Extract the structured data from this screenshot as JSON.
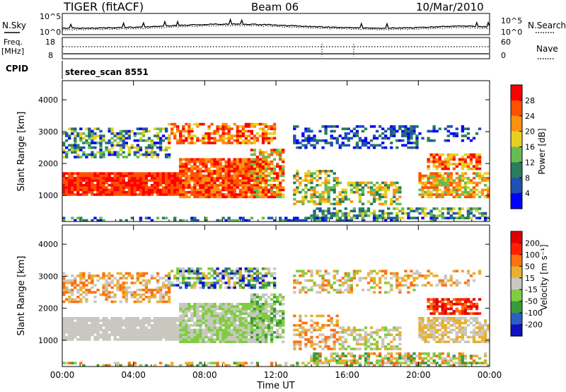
{
  "header": {
    "title": "TIGER (fitACF)",
    "beam": "Beam 06",
    "date": "10/Mar/2010"
  },
  "top_panels": {
    "nsky": {
      "label": "N.Sky",
      "ticks_left": [
        "10^5",
        "10^0"
      ],
      "ticks_right": [
        "10^5",
        "10^0"
      ],
      "right_label": "N.Search"
    },
    "freq": {
      "label_line1": "Freq.",
      "label_line2": "[MHz]",
      "ticks_left": [
        "18",
        "8"
      ],
      "ticks_right": [
        "60",
        "0"
      ],
      "right_label": "Nave"
    },
    "cpid": {
      "label": "CPID",
      "text": "stereo_scan 8551"
    }
  },
  "chart_data": [
    {
      "type": "heatmap",
      "title": "",
      "ylabel": "Slant Range [km]",
      "xlabel": "",
      "x_ticks": [
        "00:00",
        "04:00",
        "08:00",
        "12:00",
        "16:00",
        "20:00",
        "00:00"
      ],
      "y_ticks": [
        "1000",
        "2000",
        "3000",
        "4000"
      ],
      "ylim": [
        180,
        4600
      ],
      "colorbar": {
        "label": "Power [dB]",
        "ticks": [
          "4",
          "8",
          "12",
          "16",
          "20",
          "24",
          "28"
        ],
        "range": [
          0,
          32
        ],
        "colors": [
          "#0000ff",
          "#2050b0",
          "#2a7d5a",
          "#66bb55",
          "#e8d020",
          "#ff9010",
          "#ff5000",
          "#ff0000"
        ]
      }
    },
    {
      "type": "heatmap",
      "title": "",
      "ylabel": "Slant Range [km]",
      "xlabel": "Time UT",
      "x_ticks": [
        "00:00",
        "04:00",
        "08:00",
        "12:00",
        "16:00",
        "20:00",
        "00:00"
      ],
      "y_ticks": [
        "1000",
        "2000",
        "3000",
        "4000"
      ],
      "ylim": [
        180,
        4600
      ],
      "colorbar": {
        "label": "Velocity [m s⁻¹]",
        "ticks": [
          "200",
          "100",
          "50",
          "15",
          "-15",
          "-50",
          "-100",
          "-200"
        ],
        "colors": [
          "#1010c0",
          "#2c5ec8",
          "#3a9a3a",
          "#80cc40",
          "#c8c8c0",
          "#e8b030",
          "#ff7010",
          "#ff2000",
          "#e00000"
        ]
      }
    }
  ]
}
